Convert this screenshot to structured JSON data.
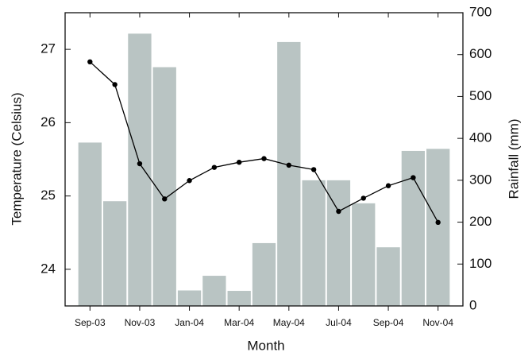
{
  "chart_data": {
    "type": "combo",
    "xlabel": "Month",
    "ylabel": "Temperature (Celsius)",
    "y2label": "Rainfall (mm)",
    "categories": [
      "Sep-03",
      null,
      "Nov-03",
      null,
      "Jan-04",
      null,
      "Mar-04",
      null,
      "May-04",
      null,
      "Jul-04",
      null,
      "Sep-04",
      null,
      "Nov-04"
    ],
    "series": [
      {
        "type": "bar",
        "axis": "y2",
        "color": "#b9c4c3",
        "values": [
          390,
          250,
          650,
          570,
          37,
          72,
          36,
          150,
          630,
          300,
          300,
          245,
          140,
          370,
          375
        ]
      },
      {
        "type": "line",
        "axis": "y",
        "color": "#000000",
        "values": [
          26.83,
          26.52,
          25.44,
          24.96,
          25.21,
          25.39,
          25.46,
          25.51,
          25.42,
          25.36,
          24.79,
          24.97,
          25.14,
          25.25,
          24.64
        ]
      }
    ],
    "ylim": [
      23.5,
      27.5
    ],
    "yticks": [
      24,
      25,
      26,
      27
    ],
    "y2lim": [
      0,
      700
    ],
    "y2ticks": [
      0,
      100,
      200,
      300,
      400,
      500,
      600,
      700
    ]
  }
}
